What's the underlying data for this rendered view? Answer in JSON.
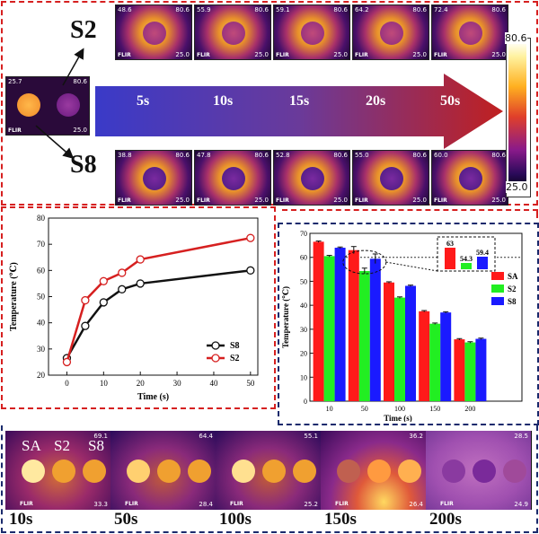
{
  "top": {
    "label_s2": "S2",
    "label_s8": "S8",
    "source": {
      "tl": "25.7",
      "tr": "80.6",
      "br": "25.0"
    },
    "arrow_times": [
      "5s",
      "10s",
      "15s",
      "20s",
      "50s"
    ],
    "s2_thumbs": [
      {
        "tl": "48.6",
        "tr": "80.6",
        "br": "25.0"
      },
      {
        "tl": "55.9",
        "tr": "80.6",
        "br": "25.0"
      },
      {
        "tl": "59.1",
        "tr": "80.6",
        "br": "25.0"
      },
      {
        "tl": "64.2",
        "tr": "80.6",
        "br": "25.0"
      },
      {
        "tl": "72.4",
        "tr": "80.6",
        "br": "25.0"
      }
    ],
    "s8_thumbs": [
      {
        "tl": "38.8",
        "tr": "80.6",
        "br": "25.0"
      },
      {
        "tl": "47.8",
        "tr": "80.6",
        "br": "25.0"
      },
      {
        "tl": "52.8",
        "tr": "80.6",
        "br": "25.0"
      },
      {
        "tl": "55.0",
        "tr": "80.6",
        "br": "25.0"
      },
      {
        "tl": "60.0",
        "tr": "80.6",
        "br": "25.0"
      }
    ],
    "flir": "FLIR",
    "colorbar_max": "80.6",
    "colorbar_min": "25.0"
  },
  "bottom_strip": {
    "labels_first": [
      "SA",
      "S2",
      "S8"
    ],
    "times": [
      "10s",
      "50s",
      "100s",
      "150s",
      "200s"
    ],
    "corner_tr": [
      "69.1",
      "64.4",
      "55.1",
      "36.2",
      "28.5"
    ],
    "corner_br": [
      "33.3",
      "28.4",
      "25.2",
      "26.4",
      "24.9"
    ],
    "flir": "FLIR"
  },
  "chart_data": [
    {
      "type": "line",
      "xlabel": "Time (s)",
      "ylabel": "Temperature (℃)",
      "xlim": [
        -5,
        52
      ],
      "ylim": [
        20,
        80
      ],
      "xticks": [
        0,
        10,
        20,
        30,
        40,
        50
      ],
      "yticks": [
        20,
        30,
        40,
        50,
        60,
        70,
        80
      ],
      "legend_position": "bottom-right",
      "series": [
        {
          "name": "S8",
          "color": "#111111",
          "x": [
            0,
            5,
            10,
            15,
            20,
            50
          ],
          "y": [
            26.5,
            38.8,
            47.8,
            52.8,
            55.0,
            60.0
          ]
        },
        {
          "name": "S2",
          "color": "#d62020",
          "x": [
            0,
            5,
            10,
            15,
            20,
            50
          ],
          "y": [
            25.0,
            48.6,
            55.9,
            59.1,
            64.2,
            72.4
          ]
        }
      ]
    },
    {
      "type": "bar",
      "xlabel": "Time (s)",
      "ylabel": "Temperature (℃)",
      "ylim": [
        0,
        70
      ],
      "yticks": [
        0,
        10,
        20,
        30,
        40,
        50,
        60,
        70
      ],
      "categories": [
        "10",
        "50",
        "100",
        "150",
        "200"
      ],
      "legend_position": "right",
      "reference_line": 60,
      "series": [
        {
          "name": "SA",
          "color": "#ff1a1a",
          "values": [
            66.5,
            63.0,
            49.5,
            37.5,
            25.8
          ],
          "errors": [
            0.3,
            1.5,
            0.3,
            0.3,
            0.3
          ]
        },
        {
          "name": "S2",
          "color": "#22ee22",
          "values": [
            60.5,
            54.3,
            43.2,
            32.3,
            24.5
          ],
          "errors": [
            0.3,
            1.2,
            0.3,
            0.3,
            0.3
          ]
        },
        {
          "name": "S8",
          "color": "#1a1aff",
          "values": [
            64.0,
            59.4,
            48.1,
            37.0,
            26.0
          ],
          "errors": [
            0.3,
            2.0,
            0.3,
            0.3,
            0.3
          ]
        }
      ],
      "inset_labels": [
        "63",
        "54.3",
        "59.4"
      ]
    }
  ]
}
